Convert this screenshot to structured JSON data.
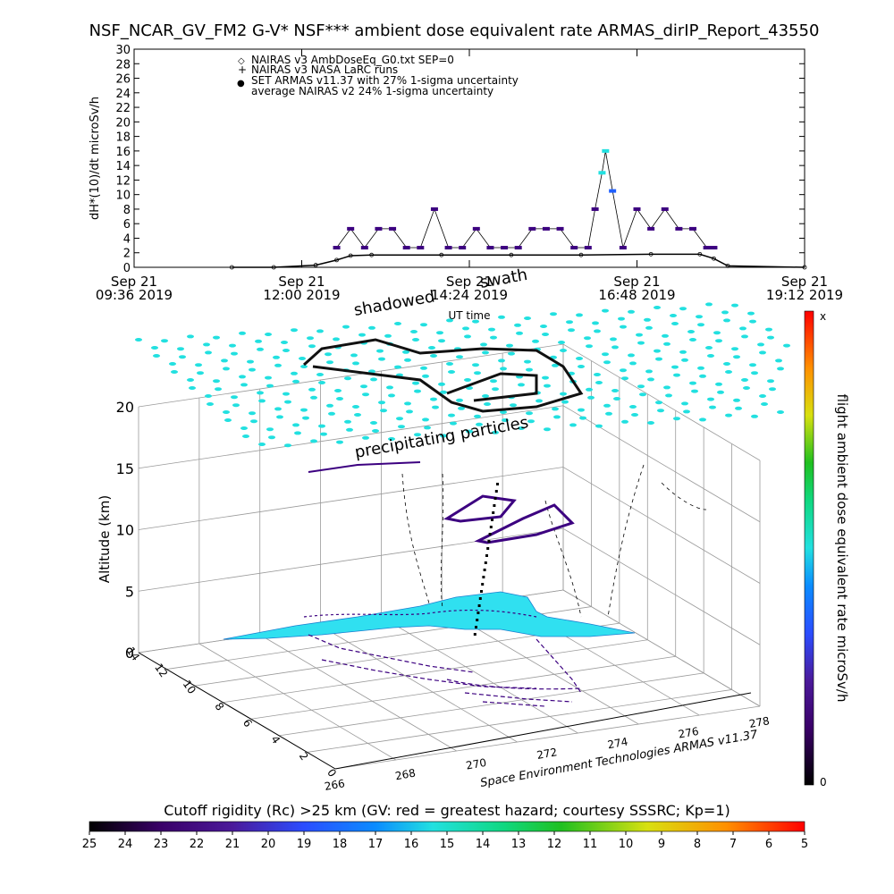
{
  "title": "NSF_NCAR_GV_FM2 G-V* NSF*** ambient dose equivalent rate ARMAS_dirIP_Report_43550",
  "chart_data": [
    {
      "type": "line",
      "ylabel": "dH*(10)/dt microSv/h",
      "xlabel": "UT time",
      "ylim": [
        0,
        30
      ],
      "ytick_labels": [
        "0",
        "2",
        "4",
        "6",
        "8",
        "10",
        "12",
        "14",
        "16",
        "18",
        "20",
        "22",
        "24",
        "26",
        "28",
        "30"
      ],
      "xticks": [
        {
          "line1": "Sep 21",
          "line2": "09:36 2019"
        },
        {
          "line1": "Sep 21",
          "line2": "12:00 2019"
        },
        {
          "line1": "Sep 21",
          "line2": "14:24 2019"
        },
        {
          "line1": "Sep 21",
          "line2": "16:48 2019"
        },
        {
          "line1": "Sep 21",
          "line2": "19:12 2019"
        }
      ],
      "xlim_hours": [
        9.6,
        19.2
      ],
      "legend": [
        {
          "symbol": "◇",
          "label": "NAIRAS v3 AmbDoseEq_G0.txt SEP=0"
        },
        {
          "symbol": "+",
          "label": "NAIRAS v3 NASA LaRC runs"
        },
        {
          "symbol": "●",
          "label": "SET ARMAS v11.37 with 27% 1-sigma uncertainty",
          "color": "#1f5fff"
        },
        {
          "symbol": "",
          "label": "average NAIRAS v2 24% 1-sigma uncertainty"
        }
      ],
      "series": [
        {
          "name": "NAIRAS v3 AmbDoseEq_G0.txt SEP=0",
          "x_hours": [
            11.0,
            11.6,
            12.2,
            12.5,
            12.7,
            13.0,
            14.0,
            15.0,
            16.0,
            17.0,
            17.7,
            17.9,
            18.1,
            19.2
          ],
          "values": [
            0.0,
            0.0,
            0.3,
            1.0,
            1.6,
            1.7,
            1.7,
            1.7,
            1.7,
            1.8,
            1.8,
            1.2,
            0.2,
            0.0
          ]
        },
        {
          "name": "SET ARMAS v11.37 with 27% 1-sigma uncertainty",
          "x_hours": [
            12.5,
            12.7,
            12.9,
            13.1,
            13.3,
            13.5,
            13.7,
            13.9,
            14.1,
            14.3,
            14.5,
            14.7,
            14.9,
            15.1,
            15.3,
            15.5,
            15.7,
            15.9,
            16.1,
            16.2,
            16.3,
            16.35,
            16.45,
            16.6,
            16.8,
            17.0,
            17.2,
            17.4,
            17.6,
            17.8,
            17.9
          ],
          "values": [
            2.7,
            5.3,
            2.7,
            5.3,
            5.3,
            2.7,
            2.7,
            8.0,
            2.7,
            2.7,
            5.3,
            2.7,
            2.7,
            2.7,
            5.3,
            5.3,
            5.3,
            2.7,
            2.7,
            8.0,
            13.0,
            16.0,
            10.5,
            2.7,
            8.0,
            5.3,
            8.0,
            5.3,
            5.3,
            2.7,
            2.7
          ]
        }
      ]
    },
    {
      "type": "scatter",
      "zlabel": "Altitude (km)",
      "z_tick_labels": [
        "0",
        "5",
        "10",
        "15",
        "20"
      ],
      "y_tick_labels": [
        "0",
        "2",
        "4",
        "6",
        "8",
        "10",
        "12",
        "14"
      ],
      "x_tick_labels": [
        "266",
        "268",
        "270",
        "272",
        "274",
        "276",
        "278"
      ],
      "annotations": [
        "shadowed",
        "swath",
        "precipitating particles"
      ],
      "credit": "Space Environment Technologies ARMAS v11.37",
      "colorbar_vertical": {
        "label": "flight ambient dose equivalent rate microSv/h",
        "top_label": "x",
        "bottom_label": "0"
      },
      "colorbar_horizontal": {
        "label": "Cutoff rigidity (Rc) >25 km (GV: red = greatest hazard; courtesy SSSRC; Kp=1)",
        "tick_labels": [
          "25",
          "24",
          "23",
          "22",
          "21",
          "20",
          "19",
          "18",
          "17",
          "16",
          "15",
          "14",
          "13",
          "12",
          "11",
          "10",
          "9",
          "8",
          "7",
          "6",
          "5"
        ]
      }
    }
  ],
  "colors": {
    "armas_dark": "#3c0080",
    "armas_cyan": "#22e0e0",
    "armas_blue": "#1f5fff",
    "surface_cyan": "#30e0f0",
    "grid": "#9a9a9a"
  }
}
